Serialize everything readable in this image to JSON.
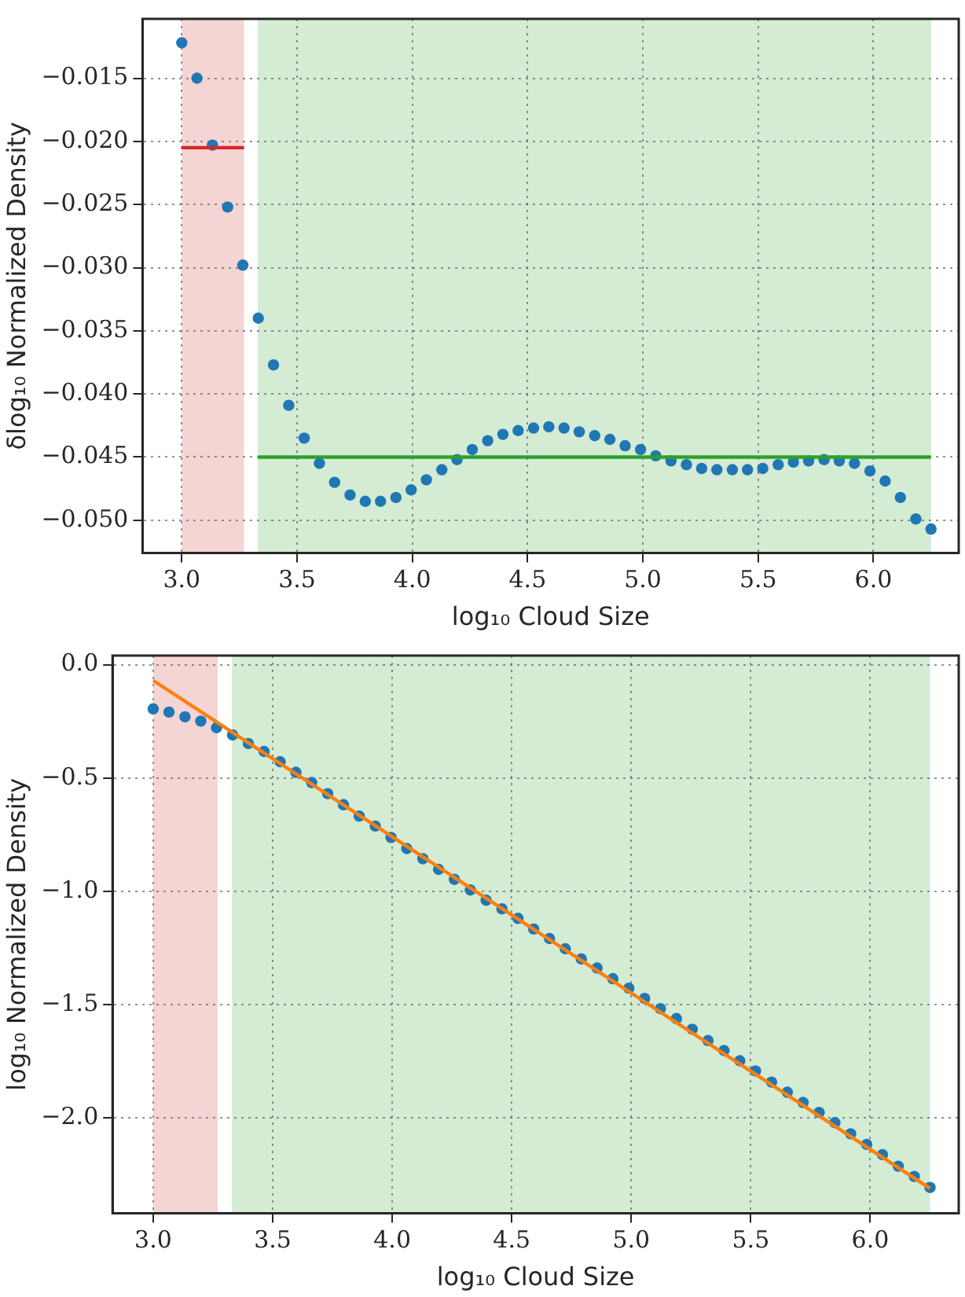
{
  "chart_data": [
    {
      "type": "scatter",
      "xlabel": "log₁₀ Cloud Size",
      "ylabel": "δlog₁₀ Normalized Density",
      "xlim": [
        2.83,
        6.37
      ],
      "xticks": [
        {
          "value": 3,
          "label": "3.0"
        },
        {
          "value": 3.5,
          "label": "3.5"
        },
        {
          "value": 4,
          "label": "4.0"
        },
        {
          "value": 4.5,
          "label": "4.5"
        },
        {
          "value": 5,
          "label": "5.0"
        },
        {
          "value": 5.5,
          "label": "5.5"
        },
        {
          "value": 6,
          "label": "6.0"
        }
      ],
      "ylim": [
        -0.0526,
        -0.0103
      ],
      "yticks": [
        {
          "value": -0.015,
          "label": "−0.015"
        },
        {
          "value": -0.02,
          "label": "−0.020"
        },
        {
          "value": -0.025,
          "label": "−0.025"
        },
        {
          "value": -0.03,
          "label": "−0.030"
        },
        {
          "value": -0.035,
          "label": "−0.035"
        },
        {
          "value": -0.04,
          "label": "−0.040"
        },
        {
          "value": -0.045,
          "label": "−0.045"
        },
        {
          "value": -0.05,
          "label": "−0.050"
        }
      ],
      "grid": true,
      "bands": [
        {
          "axis": "x",
          "from": 3.0,
          "to": 3.27,
          "color": "#f5d4d4"
        },
        {
          "axis": "x",
          "from": 3.33,
          "to": 6.25,
          "color": "#d4ebd4"
        }
      ],
      "series": [
        {
          "marker": "circle",
          "color": "#1f77b4",
          "x": [
            3.0,
            3.066,
            3.133,
            3.199,
            3.265,
            3.332,
            3.398,
            3.464,
            3.531,
            3.597,
            3.663,
            3.73,
            3.796,
            3.862,
            3.929,
            3.995,
            4.061,
            4.128,
            4.194,
            4.26,
            4.327,
            4.393,
            4.459,
            4.526,
            4.592,
            4.658,
            4.724,
            4.791,
            4.857,
            4.923,
            4.99,
            5.056,
            5.122,
            5.189,
            5.255,
            5.321,
            5.388,
            5.454,
            5.52,
            5.587,
            5.653,
            5.719,
            5.786,
            5.852,
            5.918,
            5.985,
            6.051,
            6.117,
            6.184,
            6.25
          ],
          "values": [
            -0.0122,
            -0.015,
            -0.0203,
            -0.0252,
            -0.0298,
            -0.034,
            -0.0377,
            -0.0409,
            -0.0435,
            -0.0455,
            -0.047,
            -0.048,
            -0.0485,
            -0.0485,
            -0.0482,
            -0.0476,
            -0.0468,
            -0.046,
            -0.0452,
            -0.0444,
            -0.0437,
            -0.0432,
            -0.0429,
            -0.0427,
            -0.0426,
            -0.0427,
            -0.043,
            -0.0433,
            -0.0436,
            -0.0441,
            -0.0444,
            -0.0449,
            -0.0453,
            -0.0456,
            -0.0459,
            -0.046,
            -0.046,
            -0.046,
            -0.0459,
            -0.0456,
            -0.0454,
            -0.0453,
            -0.0452,
            -0.0453,
            -0.0455,
            -0.0461,
            -0.0469,
            -0.0482,
            -0.0499,
            -0.0507
          ]
        },
        {
          "type": "line",
          "color": "#d62728",
          "x": [
            3.0,
            3.27
          ],
          "values": [
            -0.0205,
            -0.0205
          ]
        },
        {
          "type": "line",
          "color": "#2ca02c",
          "x": [
            3.33,
            6.25
          ],
          "values": [
            -0.045,
            -0.045
          ]
        }
      ]
    },
    {
      "type": "scatter",
      "xlabel": "log₁₀ Cloud Size",
      "ylabel": "log₁₀ Normalized Density",
      "xlim": [
        2.83,
        6.37
      ],
      "xticks": [
        {
          "value": 3,
          "label": "3.0"
        },
        {
          "value": 3.5,
          "label": "3.5"
        },
        {
          "value": 4,
          "label": "4.0"
        },
        {
          "value": 4.5,
          "label": "4.5"
        },
        {
          "value": 5,
          "label": "5.0"
        },
        {
          "value": 5.5,
          "label": "5.5"
        },
        {
          "value": 6,
          "label": "6.0"
        }
      ],
      "ylim": [
        -2.42,
        0.04
      ],
      "yticks": [
        {
          "value": 0,
          "label": "0.0"
        },
        {
          "value": -0.5,
          "label": "−0.5"
        },
        {
          "value": -1,
          "label": "−1.0"
        },
        {
          "value": -1.5,
          "label": "−1.5"
        },
        {
          "value": -2,
          "label": "−2.0"
        }
      ],
      "grid": true,
      "bands": [
        {
          "axis": "x",
          "from": 3.0,
          "to": 3.27,
          "color": "#f5d4d4"
        },
        {
          "axis": "x",
          "from": 3.33,
          "to": 6.25,
          "color": "#d4ebd4"
        }
      ],
      "series": [
        {
          "marker": "circle",
          "color": "#1f77b4",
          "x": [
            3.0,
            3.066,
            3.133,
            3.199,
            3.265,
            3.332,
            3.398,
            3.464,
            3.531,
            3.597,
            3.663,
            3.73,
            3.796,
            3.862,
            3.929,
            3.995,
            4.061,
            4.128,
            4.194,
            4.26,
            4.327,
            4.393,
            4.459,
            4.526,
            4.592,
            4.658,
            4.724,
            4.791,
            4.857,
            4.923,
            4.99,
            5.056,
            5.122,
            5.189,
            5.255,
            5.321,
            5.388,
            5.454,
            5.52,
            5.587,
            5.653,
            5.719,
            5.786,
            5.852,
            5.918,
            5.985,
            6.051,
            6.117,
            6.184,
            6.25
          ],
          "values": [
            -0.195,
            -0.209,
            -0.23,
            -0.249,
            -0.278,
            -0.31,
            -0.348,
            -0.383,
            -0.428,
            -0.475,
            -0.52,
            -0.569,
            -0.618,
            -0.668,
            -0.712,
            -0.762,
            -0.811,
            -0.856,
            -0.903,
            -0.947,
            -0.994,
            -1.039,
            -1.077,
            -1.119,
            -1.166,
            -1.208,
            -1.253,
            -1.298,
            -1.338,
            -1.385,
            -1.427,
            -1.472,
            -1.517,
            -1.561,
            -1.608,
            -1.658,
            -1.702,
            -1.747,
            -1.792,
            -1.841,
            -1.886,
            -1.931,
            -1.975,
            -2.02,
            -2.069,
            -2.116,
            -2.161,
            -2.212,
            -2.257,
            -2.306
          ]
        },
        {
          "type": "line",
          "color": "#ff7f0e",
          "x": [
            3.0,
            6.25
          ],
          "values": [
            -0.07,
            -2.31
          ]
        }
      ]
    }
  ]
}
